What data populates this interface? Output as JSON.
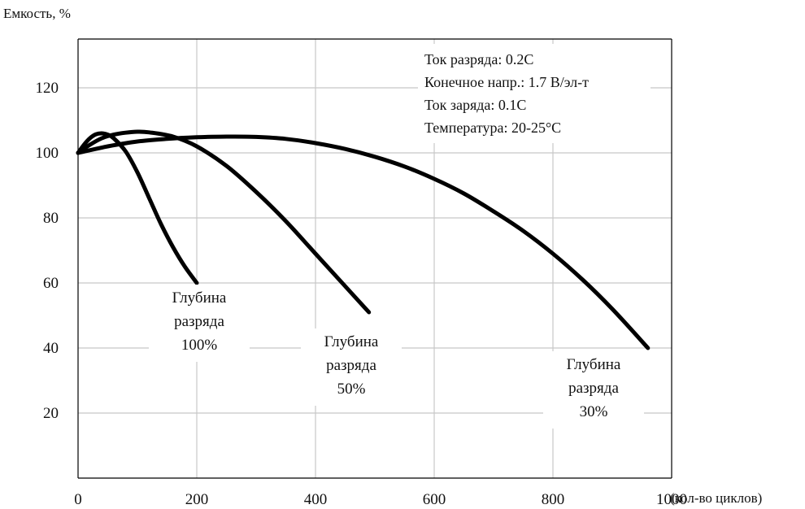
{
  "chart_data": {
    "type": "line",
    "title": "",
    "ylabel": "Емкость, %",
    "xlabel": "(кол-во циклов)",
    "xlim": [
      0,
      1000
    ],
    "ylim": [
      0,
      135
    ],
    "x_ticks": [
      "0",
      "200",
      "400",
      "600",
      "800",
      "1000"
    ],
    "y_ticks": [
      "20",
      "40",
      "60",
      "80",
      "100",
      "120"
    ],
    "grid": true,
    "conditions": [
      "Ток разряда: 0.2C",
      "Конечное напр.: 1.7 В/эл-т",
      "Ток заряда: 0.1C",
      "Температура: 20-25°C"
    ],
    "series": [
      {
        "name": "Глубина разряда 100%",
        "label_lines": [
          "Глубина",
          "разряда",
          "100%"
        ],
        "x": [
          0,
          10,
          20,
          30,
          40,
          50,
          60,
          80,
          100,
          120,
          140,
          160,
          180,
          200
        ],
        "y": [
          100,
          102.5,
          104.5,
          105.7,
          106,
          105.6,
          104.5,
          100.5,
          94,
          86,
          78,
          71,
          65,
          60
        ]
      },
      {
        "name": "Глубина разряда 50%",
        "label_lines": [
          "Глубина",
          "разряда",
          "50%"
        ],
        "x": [
          0,
          20,
          40,
          60,
          80,
          100,
          120,
          160,
          200,
          250,
          300,
          350,
          400,
          450,
          490
        ],
        "y": [
          100,
          102.5,
          104.5,
          105.6,
          106.2,
          106.5,
          106.3,
          105,
          102,
          96,
          88,
          79,
          69,
          59,
          51
        ]
      },
      {
        "name": "Глубина разряда 30%",
        "label_lines": [
          "Глубина",
          "разряда",
          "30%"
        ],
        "x": [
          0,
          50,
          100,
          150,
          200,
          250,
          300,
          350,
          400,
          450,
          500,
          550,
          600,
          650,
          700,
          750,
          800,
          850,
          900,
          960
        ],
        "y": [
          100,
          102,
          103.5,
          104.3,
          104.8,
          105,
          104.9,
          104.3,
          103,
          101.2,
          98.8,
          95.8,
          92,
          87.5,
          82,
          76,
          69,
          61,
          52,
          40
        ]
      }
    ],
    "colors": {
      "line": "#000000",
      "grid": "#c8c8c8",
      "axis": "#000000"
    }
  }
}
